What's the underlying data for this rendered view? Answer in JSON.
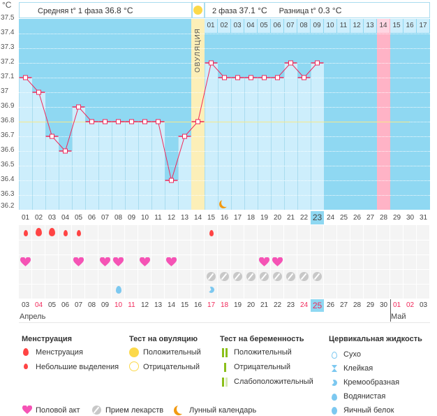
{
  "axis_unit": "°C",
  "header": {
    "phase1": "Средняя t° 1 фаза",
    "phase1_value": "36.8 °C",
    "phase2": "2 фаза",
    "phase2_value": "37.1 °C",
    "diff": "Разница t°",
    "diff_value": "0.3 °C",
    "ovulation_label": "ОВУЛЯЦИЯ"
  },
  "colors": {
    "bg": "#8fd8f2",
    "bar": "#cdeefc",
    "line": "#f0285a",
    "ovulation": "#fcefb8",
    "expected_period": "#ffb3c6",
    "coverline": "#f5e98a"
  },
  "chart_data": {
    "type": "line",
    "ylim": [
      36.2,
      37.5
    ],
    "yticks": [
      "37.5",
      "37.4",
      "37.3",
      "37.2",
      "37.1",
      "37",
      "36.9",
      "36.8",
      "36.7",
      "36.6",
      "36.5",
      "36.4",
      "36.3",
      "36.2"
    ],
    "coverline": 36.8,
    "ovulation_day": 14,
    "expected_period_day": 28,
    "cycle_days": [
      "01",
      "02",
      "03",
      "04",
      "05",
      "06",
      "07",
      "08",
      "09",
      "10",
      "11",
      "12",
      "13",
      "14",
      "15",
      "16",
      "17",
      "18",
      "19",
      "20",
      "21",
      "22",
      "23",
      "24",
      "25",
      "26",
      "27",
      "28",
      "29",
      "30",
      "31"
    ],
    "current_cycle_day": 23,
    "phase2_days": [
      "01",
      "02",
      "03",
      "04",
      "05",
      "06",
      "07",
      "08",
      "09",
      "10",
      "11",
      "12",
      "13",
      "14",
      "15",
      "16",
      "17"
    ],
    "temperatures": [
      37.1,
      37.0,
      36.7,
      36.6,
      36.9,
      36.8,
      36.8,
      36.8,
      36.8,
      36.8,
      36.8,
      36.4,
      36.7,
      36.8,
      37.2,
      37.1,
      37.1,
      37.1,
      37.1,
      37.1,
      37.2,
      37.1,
      37.2
    ],
    "dates": [
      "03",
      "04",
      "05",
      "06",
      "07",
      "08",
      "09",
      "10",
      "11",
      "12",
      "13",
      "14",
      "15",
      "16",
      "17",
      "18",
      "19",
      "20",
      "21",
      "22",
      "23",
      "24",
      "25",
      "26",
      "27",
      "28",
      "29",
      "30",
      "01",
      "02",
      "03"
    ],
    "weekend_dates_idx": [
      1,
      7,
      8,
      14,
      15,
      21,
      22,
      28,
      29
    ],
    "today_idx": 23,
    "months": [
      {
        "label": "Апрель",
        "start_day": 1
      },
      {
        "label": "Май",
        "start_day": 29
      }
    ],
    "moon_day": 16,
    "menstruation": {
      "heavy": [
        2,
        3
      ],
      "light": [
        1,
        4,
        5,
        15
      ]
    },
    "intercourse": [
      1,
      5,
      7,
      8,
      10,
      12,
      19,
      20
    ],
    "medication": [
      15,
      16,
      17,
      18,
      19,
      20,
      21,
      22,
      23
    ],
    "cervical_fluid": {
      "watery": [
        8
      ],
      "creamy": [
        15
      ]
    }
  },
  "legend": {
    "menstruation": {
      "title": "Менструация",
      "items": [
        "Менструация",
        "Небольшие выделения"
      ]
    },
    "ovulation_test": {
      "title": "Тест на овуляцию",
      "items": [
        "Положительный",
        "Отрицательный"
      ]
    },
    "pregnancy_test": {
      "title": "Тест на беременность",
      "items": [
        "Положительный",
        "Отрицательный",
        "Слабоположительный"
      ]
    },
    "cervical": {
      "title": "Цервикальная жидкость",
      "items": [
        "Сухо",
        "Клейкая",
        "Кремообразная",
        "Водянистая",
        "Яичный белок"
      ]
    },
    "other": [
      "Половой акт",
      "Прием лекарств",
      "Лунный календарь"
    ]
  }
}
